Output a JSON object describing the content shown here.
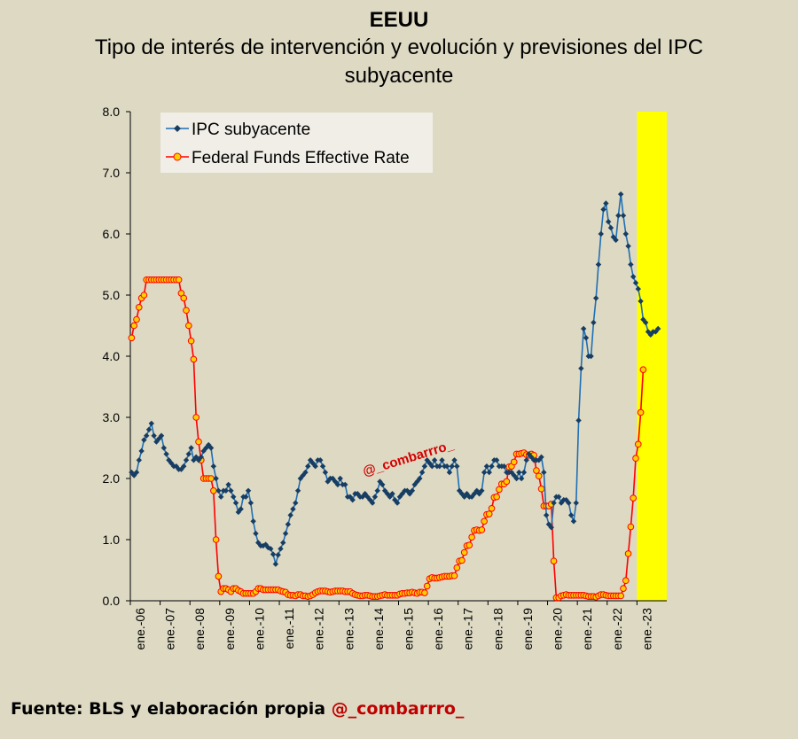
{
  "header": {
    "title": "EEUU",
    "subtitle": "Tipo de interés de intervención y evolución y previsiones del IPC subyacente"
  },
  "footer": {
    "source_label": "Fuente: BLS y elaboración propia",
    "handle": "@_combarrro_"
  },
  "watermark": "@_combarrro_",
  "colors": {
    "background": "#ddd9c3",
    "legend_bg": "#f0eee6",
    "cpi_line": "#1f6fb5",
    "cpi_marker": "#173d63",
    "ffr_line": "#ff0000",
    "ffr_marker_fill": "#ffd000",
    "forecast_band": "#ffff00"
  },
  "chart_data": {
    "type": "line",
    "title": "",
    "xlabel": "",
    "ylabel": "",
    "ylim": [
      0,
      8
    ],
    "yticks": [
      "0.0",
      "1.0",
      "2.0",
      "3.0",
      "4.0",
      "5.0",
      "6.0",
      "7.0",
      "8.0"
    ],
    "x_tick_labels": [
      "ene.-06",
      "ene.-07",
      "ene.-08",
      "ene.-09",
      "ene.-10",
      "ene.-11",
      "ene.-12",
      "ene.-13",
      "ene.-14",
      "ene.-15",
      "ene.-16",
      "ene.-17",
      "ene.-18",
      "ene.-19",
      "ene.-20",
      "ene.-21",
      "ene.-22",
      "ene.-23"
    ],
    "x_start": "2006-01",
    "x_end": "2023-12",
    "grid": false,
    "legend_position": "top-left",
    "forecast_period": {
      "start": "2023-01",
      "end": "2023-12"
    },
    "series": [
      {
        "name": "IPC subyacente",
        "start": "2006-01",
        "values": [
          2.1,
          2.05,
          2.1,
          2.3,
          2.45,
          2.63,
          2.7,
          2.8,
          2.9,
          2.7,
          2.6,
          2.65,
          2.7,
          2.5,
          2.4,
          2.3,
          2.25,
          2.2,
          2.2,
          2.15,
          2.15,
          2.2,
          2.3,
          2.4,
          2.5,
          2.3,
          2.35,
          2.3,
          2.35,
          2.45,
          2.5,
          2.55,
          2.5,
          2.2,
          2.0,
          1.8,
          1.7,
          1.8,
          1.8,
          1.9,
          1.8,
          1.7,
          1.6,
          1.45,
          1.5,
          1.7,
          1.7,
          1.8,
          1.6,
          1.3,
          1.1,
          0.95,
          0.9,
          0.9,
          0.92,
          0.87,
          0.85,
          0.76,
          0.6,
          0.75,
          0.85,
          0.95,
          1.1,
          1.25,
          1.4,
          1.5,
          1.6,
          1.8,
          2.0,
          2.05,
          2.1,
          2.2,
          2.3,
          2.25,
          2.2,
          2.3,
          2.3,
          2.2,
          2.1,
          1.95,
          2.0,
          2.0,
          1.95,
          1.9,
          2.0,
          1.9,
          1.9,
          1.7,
          1.7,
          1.65,
          1.75,
          1.75,
          1.7,
          1.7,
          1.75,
          1.7,
          1.65,
          1.6,
          1.7,
          1.8,
          1.95,
          1.9,
          1.8,
          1.75,
          1.7,
          1.75,
          1.65,
          1.6,
          1.7,
          1.75,
          1.8,
          1.8,
          1.75,
          1.8,
          1.9,
          1.95,
          2.0,
          2.1,
          2.2,
          2.3,
          2.25,
          2.2,
          2.3,
          2.2,
          2.2,
          2.3,
          2.2,
          2.2,
          2.1,
          2.2,
          2.3,
          2.2,
          1.8,
          1.75,
          1.7,
          1.75,
          1.7,
          1.7,
          1.75,
          1.8,
          1.75,
          1.8,
          2.1,
          2.2,
          2.1,
          2.2,
          2.3,
          2.3,
          2.2,
          2.2,
          2.2,
          2.1,
          2.1,
          2.1,
          2.05,
          2.0,
          2.1,
          2.0,
          2.1,
          2.3,
          2.4,
          2.35,
          2.3,
          2.3,
          2.3,
          2.35,
          2.1,
          1.4,
          1.25,
          1.2,
          1.6,
          1.7,
          1.7,
          1.6,
          1.65,
          1.65,
          1.6,
          1.4,
          1.3,
          1.6,
          2.95,
          3.8,
          4.45,
          4.3,
          4.0,
          4.0,
          4.55,
          4.95,
          5.5,
          6.0,
          6.4,
          6.5,
          6.2,
          6.1,
          5.95,
          5.9,
          6.3,
          6.65,
          6.3,
          6.0,
          5.8,
          5.5,
          5.3,
          5.2,
          5.1,
          4.9,
          4.6,
          4.55,
          4.4,
          4.35,
          4.4,
          4.4,
          4.45
        ]
      },
      {
        "name": "Federal Funds Effective Rate",
        "start": "2006-01",
        "values": [
          4.3,
          4.5,
          4.6,
          4.8,
          4.95,
          5.0,
          5.25,
          5.25,
          5.25,
          5.25,
          5.25,
          5.25,
          5.25,
          5.25,
          5.25,
          5.25,
          5.25,
          5.25,
          5.25,
          5.25,
          5.03,
          4.95,
          4.75,
          4.5,
          4.25,
          3.95,
          3.0,
          2.6,
          2.3,
          2.0,
          2.0,
          2.0,
          2.0,
          1.8,
          1.0,
          0.4,
          0.15,
          0.2,
          0.2,
          0.18,
          0.15,
          0.2,
          0.2,
          0.17,
          0.15,
          0.12,
          0.12,
          0.12,
          0.12,
          0.12,
          0.15,
          0.2,
          0.2,
          0.18,
          0.18,
          0.18,
          0.18,
          0.18,
          0.18,
          0.18,
          0.16,
          0.15,
          0.14,
          0.1,
          0.09,
          0.09,
          0.08,
          0.1,
          0.1,
          0.08,
          0.08,
          0.07,
          0.08,
          0.1,
          0.13,
          0.15,
          0.16,
          0.16,
          0.16,
          0.15,
          0.14,
          0.15,
          0.16,
          0.16,
          0.16,
          0.16,
          0.15,
          0.15,
          0.15,
          0.12,
          0.1,
          0.09,
          0.08,
          0.08,
          0.09,
          0.09,
          0.08,
          0.07,
          0.07,
          0.07,
          0.08,
          0.09,
          0.1,
          0.09,
          0.09,
          0.09,
          0.09,
          0.09,
          0.11,
          0.12,
          0.12,
          0.13,
          0.13,
          0.14,
          0.13,
          0.12,
          0.14,
          0.14,
          0.13,
          0.24,
          0.36,
          0.38,
          0.37,
          0.37,
          0.38,
          0.39,
          0.4,
          0.4,
          0.4,
          0.41,
          0.41,
          0.54,
          0.65,
          0.66,
          0.79,
          0.9,
          0.91,
          1.04,
          1.15,
          1.16,
          1.15,
          1.16,
          1.3,
          1.41,
          1.42,
          1.51,
          1.69,
          1.7,
          1.82,
          1.91,
          1.91,
          1.95,
          2.19,
          2.2,
          2.27,
          2.4,
          2.4,
          2.41,
          2.42,
          2.39,
          2.38,
          2.4,
          2.38,
          2.13,
          2.04,
          1.83,
          1.55,
          1.55,
          1.55,
          1.58,
          0.65,
          0.05,
          0.05,
          0.08,
          0.09,
          0.1,
          0.09,
          0.09,
          0.09,
          0.09,
          0.09,
          0.09,
          0.09,
          0.08,
          0.07,
          0.07,
          0.07,
          0.06,
          0.08,
          0.1,
          0.1,
          0.09,
          0.08,
          0.08,
          0.08,
          0.08,
          0.08,
          0.08,
          0.2,
          0.33,
          0.77,
          1.21,
          1.68,
          2.33,
          2.56,
          3.08,
          3.78
        ]
      }
    ]
  }
}
